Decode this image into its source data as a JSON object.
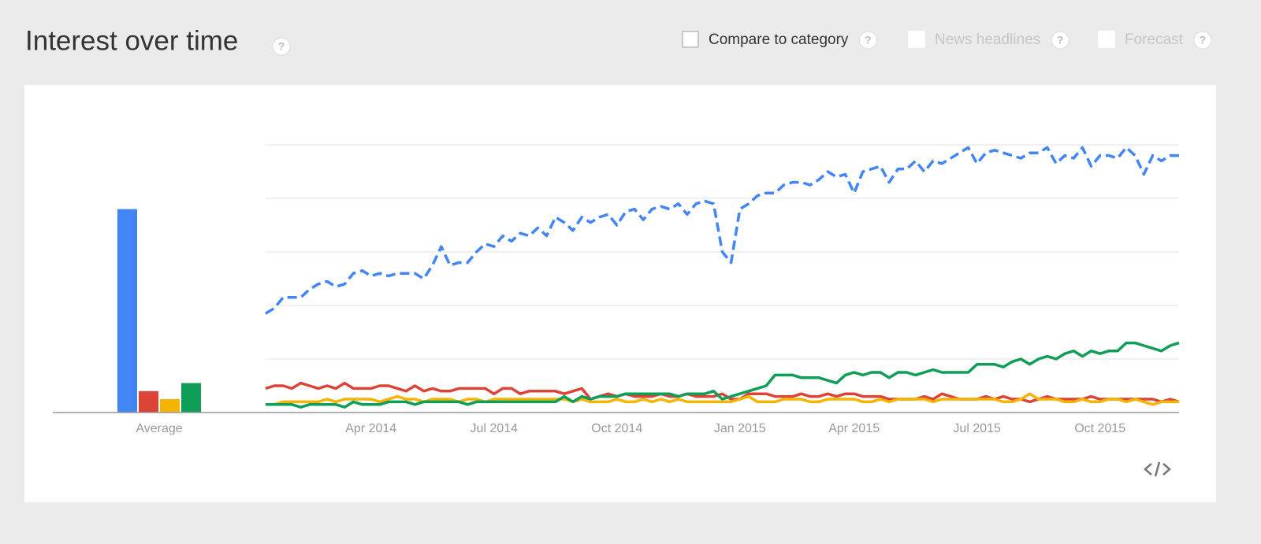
{
  "header": {
    "title": "Interest over time",
    "help": "?",
    "options": [
      {
        "label": "Compare to category",
        "enabled": true
      },
      {
        "label": "News headlines",
        "enabled": false
      },
      {
        "label": "Forecast",
        "enabled": false
      }
    ]
  },
  "chart_data": [
    {
      "type": "bar",
      "categories": [
        "Average"
      ],
      "ylim": [
        0,
        100
      ],
      "series": [
        {
          "color": "#4285f4",
          "values": [
            76
          ]
        },
        {
          "color": "#db4437",
          "values": [
            8
          ]
        },
        {
          "color": "#f4b400",
          "values": [
            5
          ]
        },
        {
          "color": "#0f9d58",
          "values": [
            11
          ]
        }
      ]
    },
    {
      "type": "line",
      "ylim": [
        0,
        100
      ],
      "yticks": [
        0,
        20,
        40,
        60,
        80,
        100
      ],
      "grid": true,
      "categories": [
        null,
        null,
        null,
        null,
        null,
        null,
        null,
        null,
        null,
        null,
        null,
        null,
        "Apr 2014",
        null,
        null,
        null,
        null,
        null,
        null,
        null,
        null,
        null,
        null,
        null,
        null,
        null,
        "Jul 2014",
        null,
        null,
        null,
        null,
        null,
        null,
        null,
        null,
        null,
        null,
        null,
        null,
        null,
        "Oct 2014",
        null,
        null,
        null,
        null,
        null,
        null,
        null,
        null,
        null,
        null,
        null,
        null,
        null,
        "Jan 2015",
        null,
        null,
        null,
        null,
        null,
        null,
        null,
        null,
        null,
        null,
        null,
        null,
        "Apr 2015",
        null,
        null,
        null,
        null,
        null,
        null,
        null,
        null,
        null,
        null,
        null,
        null,
        null,
        "Jul 2015",
        null,
        null,
        null,
        null,
        null,
        null,
        null,
        null,
        null,
        null,
        null,
        null,
        null,
        "Oct 2015",
        null,
        null,
        null,
        null,
        null,
        null,
        null,
        null,
        null
      ],
      "series": [
        {
          "color": "#4285f4",
          "dashed": true,
          "values": [
            37,
            39,
            43,
            43,
            43,
            46,
            48,
            49,
            47,
            48,
            52,
            53,
            51,
            52,
            51,
            52,
            52,
            52,
            50,
            55,
            62,
            55,
            56,
            56,
            60,
            63,
            62,
            66,
            64,
            67,
            66,
            69,
            66,
            73,
            71,
            68,
            73,
            71,
            73,
            74,
            70,
            75,
            76,
            72,
            76,
            77,
            76,
            78,
            74,
            78,
            79,
            78,
            60,
            56,
            76,
            78,
            81,
            82,
            82,
            85,
            86,
            86,
            85,
            87,
            90,
            88,
            89,
            82,
            90,
            91,
            92,
            86,
            91,
            91,
            94,
            90,
            94,
            93,
            95,
            97,
            99,
            93,
            97,
            98,
            97,
            96,
            95,
            97,
            97,
            99,
            93,
            96,
            95,
            99,
            92,
            96,
            96,
            95,
            99,
            96,
            89,
            96,
            94,
            96,
            96
          ]
        },
        {
          "color": "#db4437",
          "dashed": false,
          "values": [
            9,
            10,
            10,
            9,
            11,
            10,
            9,
            10,
            9,
            11,
            9,
            9,
            9,
            10,
            10,
            9,
            8,
            10,
            8,
            9,
            8,
            8,
            9,
            9,
            9,
            9,
            7,
            9,
            9,
            7,
            8,
            8,
            8,
            8,
            7,
            8,
            9,
            5,
            6,
            7,
            6,
            7,
            6,
            6,
            6,
            7,
            6,
            6,
            7,
            6,
            6,
            6,
            7,
            5,
            5,
            7,
            7,
            7,
            6,
            6,
            6,
            7,
            6,
            6,
            7,
            6,
            7,
            7,
            6,
            6,
            6,
            5,
            5,
            5,
            5,
            6,
            5,
            7,
            6,
            5,
            5,
            5,
            6,
            5,
            6,
            5,
            5,
            4,
            5,
            6,
            5,
            5,
            5,
            5,
            6,
            5,
            5,
            5,
            5,
            5,
            5,
            5,
            4,
            5,
            4
          ]
        },
        {
          "color": "#f4b400",
          "dashed": false,
          "values": [
            3,
            3,
            4,
            4,
            4,
            4,
            4,
            5,
            4,
            5,
            5,
            5,
            5,
            4,
            5,
            6,
            5,
            5,
            4,
            5,
            5,
            5,
            4,
            5,
            5,
            4,
            5,
            5,
            5,
            5,
            5,
            5,
            5,
            5,
            5,
            4,
            5,
            4,
            4,
            4,
            5,
            4,
            4,
            5,
            4,
            5,
            4,
            5,
            4,
            4,
            4,
            4,
            4,
            4,
            5,
            6,
            4,
            4,
            4,
            5,
            5,
            5,
            4,
            4,
            5,
            5,
            5,
            5,
            4,
            4,
            5,
            4,
            5,
            5,
            5,
            5,
            4,
            5,
            5,
            5,
            5,
            5,
            5,
            5,
            4,
            4,
            5,
            7,
            5,
            5,
            5,
            4,
            4,
            5,
            4,
            4,
            5,
            5,
            4,
            5,
            4,
            3,
            4,
            4,
            4
          ]
        },
        {
          "color": "#0f9d58",
          "dashed": false,
          "values": [
            3,
            3,
            3,
            3,
            2,
            3,
            3,
            3,
            3,
            2,
            4,
            3,
            3,
            3,
            4,
            4,
            4,
            3,
            4,
            4,
            4,
            4,
            4,
            3,
            4,
            4,
            4,
            4,
            4,
            4,
            4,
            4,
            4,
            4,
            6,
            4,
            6,
            5,
            6,
            6,
            6,
            7,
            7,
            7,
            7,
            7,
            7,
            6,
            7,
            7,
            7,
            8,
            5,
            6,
            7,
            8,
            9,
            10,
            14,
            14,
            14,
            13,
            13,
            13,
            12,
            11,
            14,
            15,
            14,
            15,
            15,
            13,
            15,
            15,
            14,
            15,
            16,
            15,
            15,
            15,
            15,
            18,
            18,
            18,
            17,
            19,
            20,
            18,
            20,
            21,
            20,
            22,
            23,
            21,
            23,
            22,
            23,
            23,
            26,
            26,
            25,
            24,
            23,
            25,
            26
          ]
        }
      ]
    }
  ]
}
